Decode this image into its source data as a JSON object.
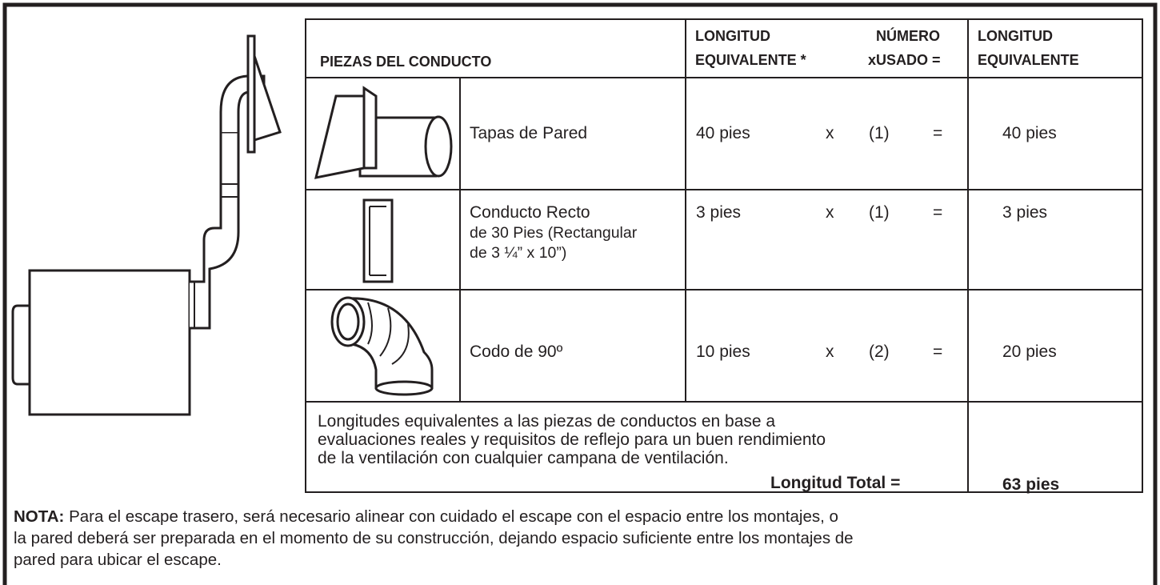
{
  "table": {
    "header": {
      "pieces": "PIEZAS DEL CONDUCTO",
      "length_top": "LONGITUD",
      "number_top": "NÚMERO",
      "length_bottom": "EQUIVALENTE *",
      "number_bottom": "xUSADO =",
      "total_top": "LONGITUD",
      "total_bottom": "EQUIVALENTE"
    },
    "rows": [
      {
        "name": [
          "Tapas de Pared"
        ],
        "length": "40 pies",
        "times": "x",
        "count": "(1)",
        "equals": "=",
        "total": "40 pies"
      },
      {
        "name": [
          "Conducto Recto",
          "de 30 Pies (Rectangular",
          "de 3 ¼” x 10”)"
        ],
        "length": "3 pies",
        "times": "x",
        "count": "(1)",
        "equals": "=",
        "total": "3 pies"
      },
      {
        "name": [
          "Codo de 90º"
        ],
        "length": "10 pies",
        "times": "x",
        "count": "(2)",
        "equals": "=",
        "total": "20 pies"
      }
    ],
    "footnote": [
      "Longitudes equivalentes a las piezas de conductos en base a",
      "evaluaciones reales y requisitos de reflejo para un buen rendimiento",
      "de la ventilación con cualquier campana de ventilación."
    ],
    "total_label": "Longitud Total =",
    "total_value": "63 pies"
  },
  "note": {
    "label": "NOTA:",
    "lines": [
      "Para el escape trasero, será necesario alinear con cuidado el escape con el espacio entre los montajes, o",
      "la pared deberá ser preparada en el momento de su construcción, dejando espacio suficiente entre los montajes de",
      "pared para ubicar el escape."
    ]
  }
}
